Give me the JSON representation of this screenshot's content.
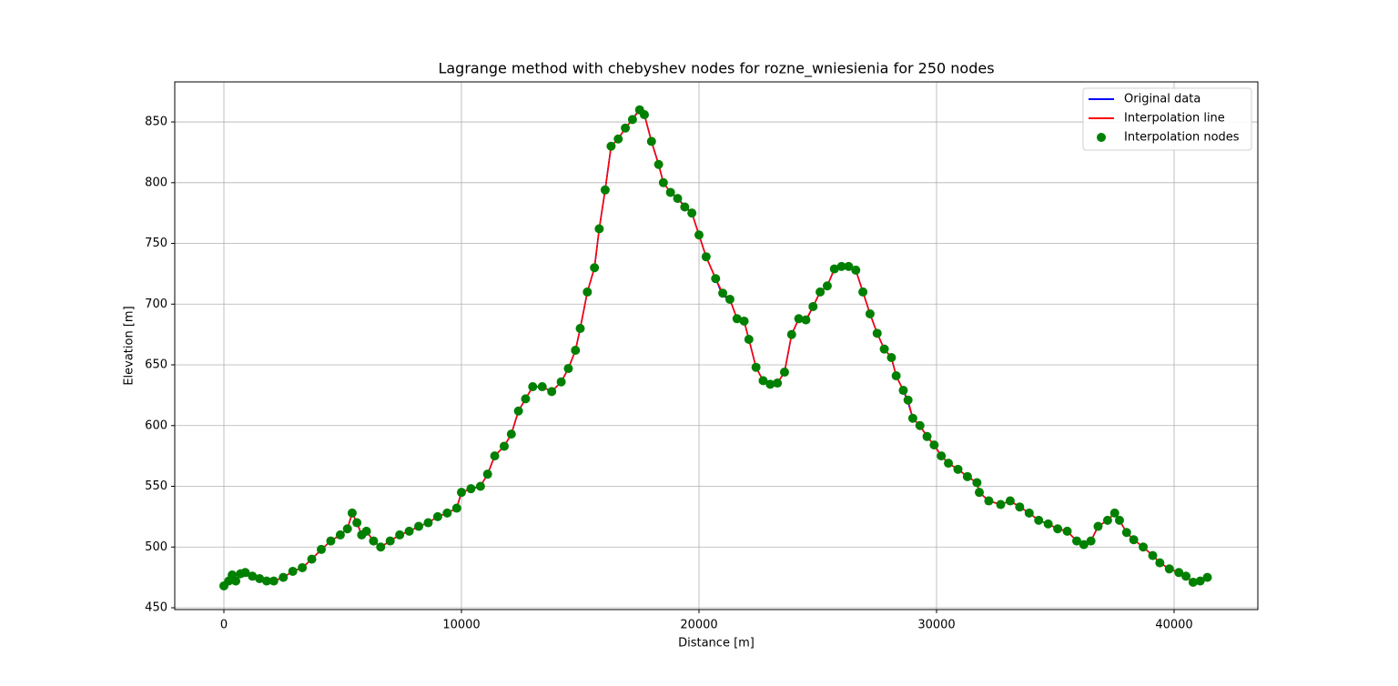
{
  "chart_data": {
    "type": "line",
    "title": "Lagrange method with chebyshev nodes for rozne_wniesienia for 250 nodes",
    "xlabel": "Distance [m]",
    "ylabel": "Elevation [m]",
    "xlim": [
      -2069,
      43525
    ],
    "ylim": [
      448.5,
      883
    ],
    "xticks": [
      0,
      10000,
      20000,
      30000,
      40000
    ],
    "yticks": [
      450,
      500,
      550,
      600,
      650,
      700,
      750,
      800,
      850
    ],
    "grid": true,
    "legend": "upper right",
    "x": [
      0,
      200,
      350,
      500,
      700,
      900,
      1200,
      1500,
      1800,
      2100,
      2500,
      2900,
      3300,
      3700,
      4100,
      4500,
      4900,
      5200,
      5400,
      5600,
      5800,
      6000,
      6300,
      6600,
      7000,
      7400,
      7800,
      8200,
      8600,
      9000,
      9400,
      9800,
      10000,
      10400,
      10800,
      11100,
      11400,
      11800,
      12100,
      12400,
      12700,
      13000,
      13400,
      13800,
      14200,
      14500,
      14800,
      15000,
      15300,
      15600,
      15800,
      16050,
      16300,
      16600,
      16900,
      17200,
      17500,
      17700,
      18000,
      18300,
      18500,
      18800,
      19100,
      19400,
      19700,
      20000,
      20300,
      20700,
      21000,
      21300,
      21600,
      21900,
      22100,
      22400,
      22700,
      23000,
      23300,
      23600,
      23900,
      24200,
      24500,
      24800,
      25100,
      25400,
      25700,
      26000,
      26300,
      26600,
      26900,
      27200,
      27500,
      27800,
      28100,
      28300,
      28600,
      28800,
      29000,
      29300,
      29600,
      29900,
      30200,
      30500,
      30900,
      31300,
      31700,
      31800,
      32200,
      32700,
      33100,
      33500,
      33900,
      34300,
      34700,
      35100,
      35500,
      35900,
      36200,
      36500,
      36800,
      37200,
      37500,
      37700,
      38000,
      38300,
      38700,
      39100,
      39400,
      39800,
      40200,
      40500,
      40800,
      41100,
      41400
    ],
    "series": [
      {
        "name": "Original data",
        "color": "#0000ff",
        "kind": "line",
        "values": [
          468,
          472,
          477,
          472,
          478,
          479,
          476,
          474,
          472,
          472,
          475,
          480,
          483,
          490,
          498,
          505,
          510,
          515,
          528,
          520,
          510,
          513,
          505,
          500,
          505,
          510,
          513,
          517,
          520,
          525,
          528,
          532,
          545,
          548,
          550,
          560,
          575,
          583,
          593,
          612,
          622,
          632,
          632,
          628,
          636,
          647,
          662,
          680,
          710,
          730,
          762,
          794,
          830,
          836,
          845,
          852,
          861,
          856,
          834,
          815,
          800,
          792,
          787,
          781,
          775,
          757,
          739,
          721,
          707,
          704,
          688,
          686,
          671,
          648,
          637,
          634,
          635,
          644,
          675,
          688,
          686,
          698,
          710,
          715,
          729,
          731,
          732,
          728,
          710,
          692,
          676,
          663,
          656,
          641,
          629,
          619,
          606,
          600,
          591,
          584,
          575,
          569,
          564,
          558,
          553,
          545,
          538,
          535,
          538,
          533,
          528,
          522,
          519,
          515,
          513,
          505,
          502,
          505,
          517,
          522,
          528,
          522,
          512,
          506,
          500,
          493,
          487,
          482,
          479,
          476,
          471,
          472,
          475
        ]
      },
      {
        "name": "Interpolation line",
        "color": "#ff0000",
        "kind": "line",
        "values": [
          468,
          472,
          477,
          472,
          478,
          479,
          476,
          474,
          472,
          472,
          475,
          480,
          483,
          490,
          498,
          505,
          510,
          515,
          528,
          520,
          510,
          513,
          505,
          500,
          505,
          510,
          513,
          517,
          520,
          525,
          528,
          532,
          545,
          548,
          550,
          560,
          575,
          583,
          593,
          612,
          622,
          632,
          632,
          628,
          636,
          647,
          662,
          680,
          710,
          730,
          762,
          794,
          830,
          836,
          845,
          852,
          860,
          856,
          834,
          815,
          800,
          792,
          787,
          780,
          775,
          757,
          739,
          721,
          709,
          704,
          688,
          686,
          671,
          648,
          637,
          634,
          635,
          644,
          675,
          688,
          687,
          698,
          710,
          715,
          729,
          731,
          731,
          728,
          710,
          692,
          676,
          663,
          656,
          641,
          629,
          621,
          606,
          600,
          591,
          584,
          575,
          569,
          564,
          558,
          553,
          545,
          538,
          535,
          538,
          533,
          528,
          522,
          519,
          515,
          513,
          505,
          502,
          505,
          517,
          522,
          528,
          522,
          512,
          506,
          500,
          493,
          487,
          482,
          479,
          476,
          471,
          472,
          475
        ]
      },
      {
        "name": "Interpolation nodes",
        "color": "#008000",
        "kind": "scatter",
        "values": [
          468,
          472,
          477,
          472,
          478,
          479,
          476,
          474,
          472,
          472,
          475,
          480,
          483,
          490,
          498,
          505,
          510,
          515,
          528,
          520,
          510,
          513,
          505,
          500,
          505,
          510,
          513,
          517,
          520,
          525,
          528,
          532,
          545,
          548,
          550,
          560,
          575,
          583,
          593,
          612,
          622,
          632,
          632,
          628,
          636,
          647,
          662,
          680,
          710,
          730,
          762,
          794,
          830,
          836,
          845,
          852,
          860,
          856,
          834,
          815,
          800,
          792,
          787,
          780,
          775,
          757,
          739,
          721,
          709,
          704,
          688,
          686,
          671,
          648,
          637,
          634,
          635,
          644,
          675,
          688,
          687,
          698,
          710,
          715,
          729,
          731,
          731,
          728,
          710,
          692,
          676,
          663,
          656,
          641,
          629,
          621,
          606,
          600,
          591,
          584,
          575,
          569,
          564,
          558,
          553,
          545,
          538,
          535,
          538,
          533,
          528,
          522,
          519,
          515,
          513,
          505,
          502,
          505,
          517,
          522,
          528,
          522,
          512,
          506,
          500,
          493,
          487,
          482,
          479,
          476,
          471,
          472,
          475
        ]
      }
    ]
  }
}
